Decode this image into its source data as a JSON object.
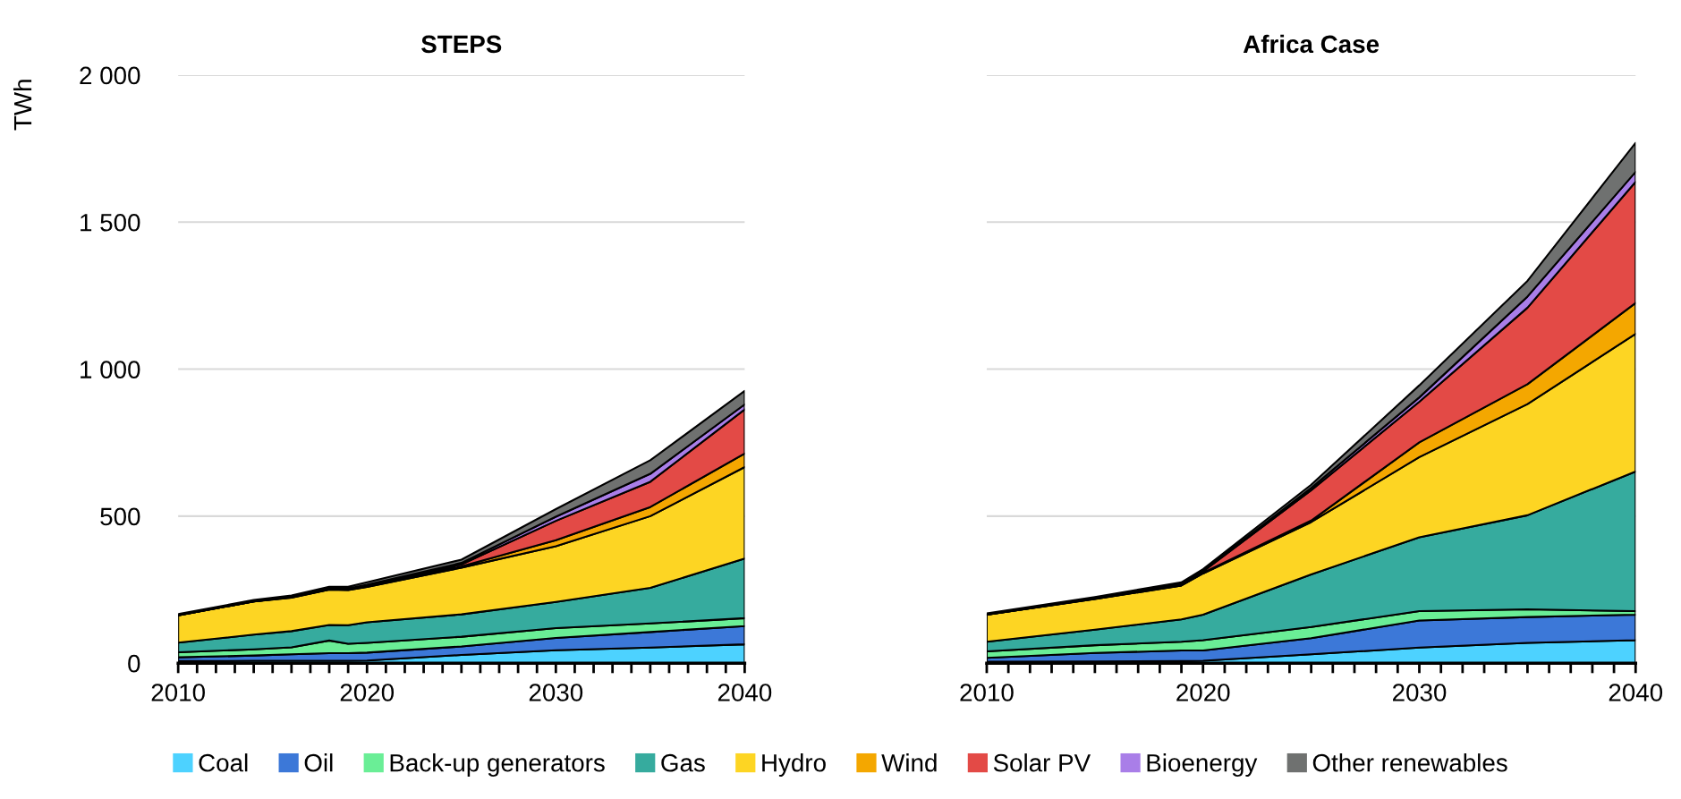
{
  "chart_data": [
    {
      "type": "area",
      "stacked": true,
      "title": "STEPS",
      "ylabel": "TWh",
      "grid": "y",
      "legend": "bottom",
      "x": [
        2010,
        2014,
        2016,
        2018,
        2019,
        2020,
        2025,
        2030,
        2035,
        2040
      ],
      "xlim": [
        2010,
        2040
      ],
      "xticks": [
        2010,
        {
          "value": 2011,
          "label": null
        },
        {
          "value": 2012,
          "label": null
        },
        {
          "value": 2013,
          "label": null
        },
        {
          "value": 2014,
          "label": null
        },
        {
          "value": 2015,
          "label": null
        },
        {
          "value": 2016,
          "label": null
        },
        {
          "value": 2017,
          "label": null
        },
        {
          "value": 2018,
          "label": null
        },
        {
          "value": 2019,
          "label": null
        },
        2020,
        {
          "value": 2021,
          "label": null
        },
        {
          "value": 2022,
          "label": null
        },
        {
          "value": 2023,
          "label": null
        },
        {
          "value": 2024,
          "label": null
        },
        {
          "value": 2025,
          "label": null
        },
        {
          "value": 2026,
          "label": null
        },
        {
          "value": 2027,
          "label": null
        },
        {
          "value": 2028,
          "label": null
        },
        {
          "value": 2029,
          "label": null
        },
        2030,
        {
          "value": 2031,
          "label": null
        },
        {
          "value": 2032,
          "label": null
        },
        {
          "value": 2033,
          "label": null
        },
        {
          "value": 2034,
          "label": null
        },
        {
          "value": 2035,
          "label": null
        },
        {
          "value": 2036,
          "label": null
        },
        {
          "value": 2037,
          "label": null
        },
        {
          "value": 2038,
          "label": null
        },
        {
          "value": 2039,
          "label": null
        },
        2040
      ],
      "ylim": [
        0,
        2000
      ],
      "yticks": [
        0,
        500,
        {
          "value": 1000,
          "label": "1 000"
        },
        {
          "value": 1500,
          "label": "1 500"
        },
        {
          "value": 2000,
          "label": "2 000"
        }
      ],
      "series": [
        {
          "name": "Coal",
          "color": "#4dd2ff",
          "values": [
            7,
            8,
            8,
            8,
            8,
            9,
            28,
            44,
            53,
            64
          ]
        },
        {
          "name": "Oil",
          "color": "#3c78d8",
          "values": [
            13,
            18,
            22,
            26,
            26,
            27,
            29,
            42,
            53,
            62
          ]
        },
        {
          "name": "Back-up generators",
          "color": "#6aee96",
          "values": [
            17,
            21,
            24,
            43,
            32,
            33,
            33,
            33,
            29,
            27
          ]
        },
        {
          "name": "Gas",
          "color": "#36ab9e",
          "values": [
            33,
            50,
            55,
            53,
            63,
            70,
            76,
            89,
            121,
            203
          ]
        },
        {
          "name": "Hydro",
          "color": "#fdd523",
          "values": [
            93,
            113,
            114,
            120,
            120,
            120,
            159,
            190,
            244,
            311
          ]
        },
        {
          "name": "Wind",
          "color": "#f4a700",
          "values": [
            0,
            0,
            1,
            1,
            1,
            2,
            4,
            20,
            31,
            46
          ]
        },
        {
          "name": "Solar PV",
          "color": "#e34a46",
          "values": [
            0,
            0,
            1,
            1,
            2,
            3,
            7,
            66,
            86,
            150
          ]
        },
        {
          "name": "Bioenergy",
          "color": "#a97ee8",
          "values": [
            1,
            1,
            1,
            2,
            2,
            3,
            5,
            14,
            27,
            17
          ]
        },
        {
          "name": "Other renewables",
          "color": "#6f7170",
          "values": [
            3,
            4,
            4,
            6,
            6,
            8,
            11,
            26,
            46,
            46
          ]
        }
      ]
    },
    {
      "type": "area",
      "stacked": true,
      "title": "Africa Case",
      "grid": "y",
      "tick_labels": "x",
      "x": [
        2010,
        2015,
        2019,
        2020,
        2025,
        2030,
        2035,
        2040
      ],
      "xlim": [
        2010,
        2040
      ],
      "xticks": [
        2010,
        {
          "value": 2011,
          "label": null
        },
        {
          "value": 2012,
          "label": null
        },
        {
          "value": 2013,
          "label": null
        },
        {
          "value": 2014,
          "label": null
        },
        {
          "value": 2015,
          "label": null
        },
        {
          "value": 2016,
          "label": null
        },
        {
          "value": 2017,
          "label": null
        },
        {
          "value": 2018,
          "label": null
        },
        {
          "value": 2019,
          "label": null
        },
        2020,
        {
          "value": 2021,
          "label": null
        },
        {
          "value": 2022,
          "label": null
        },
        {
          "value": 2023,
          "label": null
        },
        {
          "value": 2024,
          "label": null
        },
        {
          "value": 2025,
          "label": null
        },
        {
          "value": 2026,
          "label": null
        },
        {
          "value": 2027,
          "label": null
        },
        {
          "value": 2028,
          "label": null
        },
        {
          "value": 2029,
          "label": null
        },
        2030,
        {
          "value": 2031,
          "label": null
        },
        {
          "value": 2032,
          "label": null
        },
        {
          "value": 2033,
          "label": null
        },
        {
          "value": 2034,
          "label": null
        },
        {
          "value": 2035,
          "label": null
        },
        {
          "value": 2036,
          "label": null
        },
        {
          "value": 2037,
          "label": null
        },
        {
          "value": 2038,
          "label": null
        },
        {
          "value": 2039,
          "label": null
        },
        2040
      ],
      "ylim": [
        0,
        2000
      ],
      "yticks": [
        0,
        500,
        1000,
        1500,
        2000
      ],
      "series": [
        {
          "color": "#4dd2ff",
          "values": [
            5,
            6,
            7,
            8,
            30,
            53,
            69,
            78
          ]
        },
        {
          "color": "#3c78d8",
          "values": [
            13,
            29,
            36,
            35,
            55,
            92,
            88,
            87
          ]
        },
        {
          "color": "#6aee96",
          "values": [
            22,
            26,
            30,
            35,
            38,
            32,
            26,
            12
          ]
        },
        {
          "color": "#36ab9e",
          "values": [
            33,
            53,
            76,
            87,
            179,
            251,
            320,
            475
          ]
        },
        {
          "color": "#fdd523",
          "values": [
            92,
            104,
            115,
            140,
            178,
            273,
            378,
            468
          ]
        },
        {
          "color": "#f4a700",
          "values": [
            0,
            1,
            1,
            2,
            5,
            50,
            68,
            105
          ]
        },
        {
          "color": "#e34a46",
          "values": [
            0,
            1,
            2,
            5,
            103,
            138,
            260,
            412
          ]
        },
        {
          "color": "#a97ee8",
          "values": [
            1,
            1,
            3,
            2,
            8,
            15,
            38,
            34
          ]
        },
        {
          "color": "#6f7170",
          "values": [
            3,
            4,
            5,
            6,
            11,
            41,
            53,
            99
          ]
        }
      ]
    }
  ]
}
